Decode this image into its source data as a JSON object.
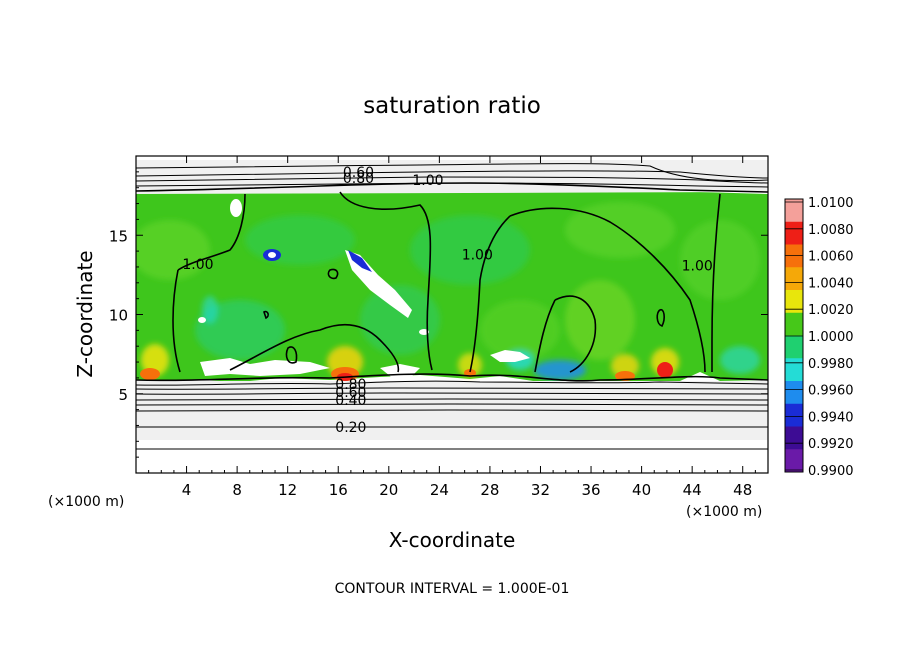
{
  "chart_data": {
    "type": "heatmap",
    "title": "saturation ratio",
    "xlabel": "X-coordinate",
    "ylabel": "Z-coordinate",
    "x_unit": "(×1000 m)",
    "y_unit": "(×1000 m)",
    "xlim": [
      0,
      50
    ],
    "ylim": [
      0,
      20
    ],
    "x_ticks": [
      4,
      8,
      12,
      16,
      20,
      24,
      28,
      32,
      36,
      40,
      44,
      48
    ],
    "y_ticks": [
      5,
      10,
      15
    ],
    "footer": "CONTOUR INTERVAL = 1.000E-01",
    "colorbar": {
      "levels": [
        "1.0100",
        "1.0080",
        "1.0060",
        "1.0040",
        "1.0020",
        "1.0000",
        "0.9980",
        "0.9960",
        "0.9940",
        "0.9920",
        "0.9900"
      ],
      "colors": [
        "#f4a09a",
        "#ee1f17",
        "#f6700b",
        "#f5a808",
        "#e8e60c",
        "#46c819",
        "#1fd070",
        "#24dcd6",
        "#1e8cee",
        "#1a2cd6",
        "#3d0c94",
        "#6a1aa8"
      ]
    },
    "contour_labels": [
      {
        "text": "0.60",
        "x": 17.6,
        "y": 19.0
      },
      {
        "text": "0.80",
        "x": 17.6,
        "y": 18.6
      },
      {
        "text": "1.00",
        "x": 23.1,
        "y": 18.5
      },
      {
        "text": "1.00",
        "x": 4.9,
        "y": 13.2
      },
      {
        "text": "1.00",
        "x": 27.0,
        "y": 13.8
      },
      {
        "text": "1.00",
        "x": 44.4,
        "y": 13.1
      },
      {
        "text": "0.80",
        "x": 17.0,
        "y": 5.6
      },
      {
        "text": "0.60",
        "x": 17.0,
        "y": 5.1
      },
      {
        "text": "0.40",
        "x": 17.0,
        "y": 4.6
      },
      {
        "text": "0.20",
        "x": 17.0,
        "y": 2.9
      }
    ]
  }
}
